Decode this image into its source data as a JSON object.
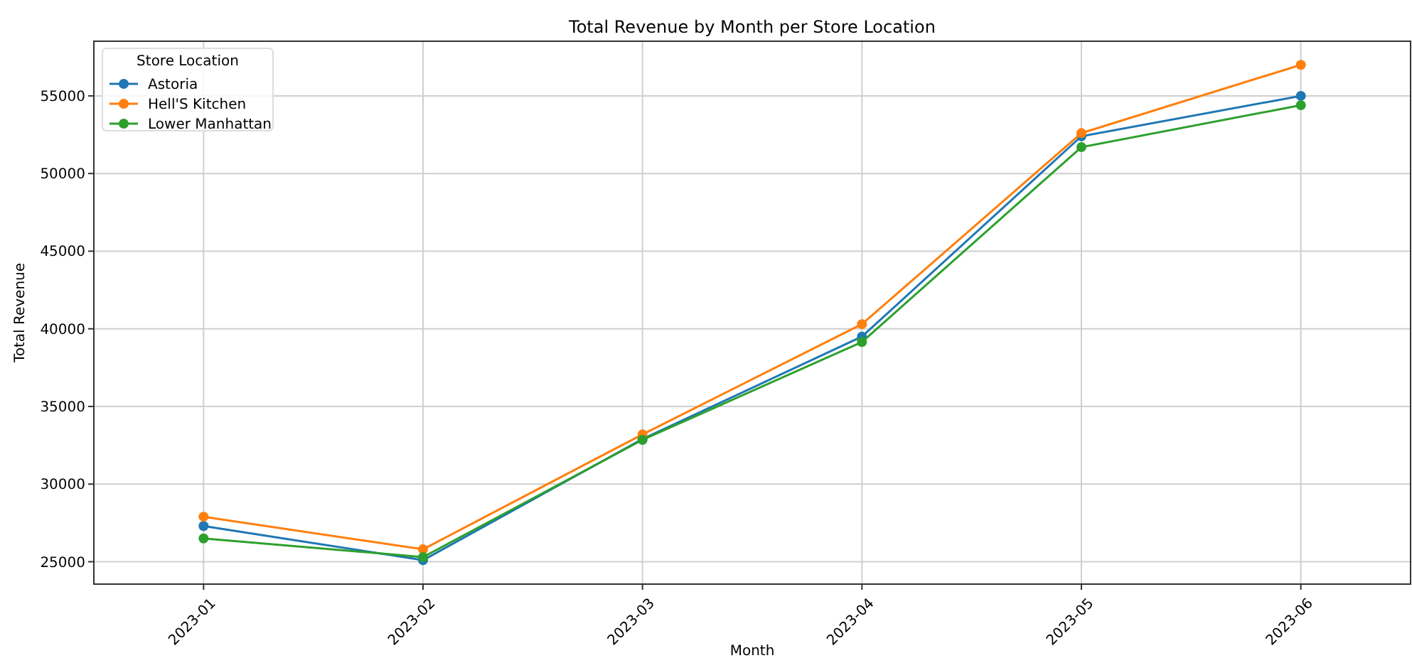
{
  "chart_data": {
    "type": "line",
    "title": "Total Revenue by Month per Store Location",
    "xlabel": "Month",
    "ylabel": "Total Revenue",
    "legend_title": "Store Location",
    "categories": [
      "2023-01",
      "2023-02",
      "2023-03",
      "2023-04",
      "2023-05",
      "2023-06"
    ],
    "series": [
      {
        "name": "Astoria",
        "color": "#1f77b4",
        "values": [
          27300,
          25100,
          32900,
          39500,
          52400,
          55000
        ]
      },
      {
        "name": "Hell'S Kitchen",
        "color": "#ff7f0e",
        "values": [
          27900,
          25800,
          33200,
          40300,
          52600,
          57000
        ]
      },
      {
        "name": "Lower Manhattan",
        "color": "#2ca02c",
        "values": [
          26500,
          25300,
          32850,
          39150,
          51700,
          54400
        ]
      }
    ],
    "ylim": [
      23560,
      58520
    ],
    "yticks": [
      25000,
      30000,
      35000,
      40000,
      45000,
      50000,
      55000
    ],
    "grid": true,
    "legend": "top left",
    "marker": "circle",
    "line_style": "solid"
  }
}
